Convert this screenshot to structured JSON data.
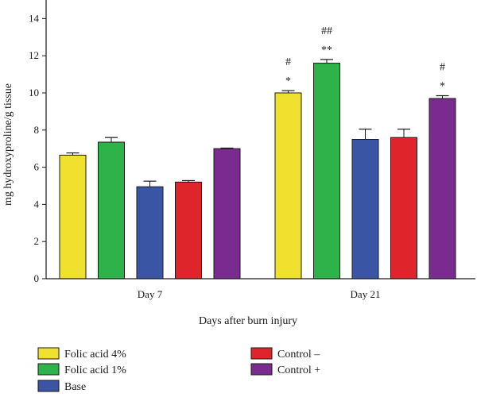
{
  "chart_data": {
    "type": "bar",
    "title": "",
    "xlabel": "Days after burn injury",
    "ylabel": "mg hydroxyproline/g tissue",
    "ylim": [
      0,
      15
    ],
    "yticks": [
      0,
      2,
      4,
      6,
      8,
      10,
      12,
      14
    ],
    "grid": false,
    "legend_position": "bottom",
    "categories": [
      "Day 7",
      "Day 21"
    ],
    "series": [
      {
        "name": "Folic acid 4%",
        "color": "#F1E12F",
        "values": [
          6.65,
          10.0
        ],
        "errors": [
          0.12,
          0.12
        ]
      },
      {
        "name": "Folic acid 1%",
        "color": "#2DB34A",
        "values": [
          7.35,
          11.6
        ],
        "errors": [
          0.25,
          0.2
        ]
      },
      {
        "name": "Base",
        "color": "#3A55A4",
        "values": [
          4.95,
          7.5
        ],
        "errors": [
          0.3,
          0.55
        ]
      },
      {
        "name": "Control –",
        "color": "#E0242C",
        "values": [
          5.2,
          7.6
        ],
        "errors": [
          0.08,
          0.45
        ]
      },
      {
        "name": "Control +",
        "color": "#7A2B8F",
        "values": [
          7.0,
          9.7
        ],
        "errors": [
          0.03,
          0.15
        ]
      }
    ],
    "annotations": [
      {
        "category": "Day 21",
        "series": "Folic acid 4%",
        "lines": [
          "#",
          "*"
        ]
      },
      {
        "category": "Day 21",
        "series": "Folic acid 1%",
        "lines": [
          "##",
          "**"
        ]
      },
      {
        "category": "Day 21",
        "series": "Control +",
        "lines": [
          "#",
          "*"
        ]
      }
    ]
  }
}
